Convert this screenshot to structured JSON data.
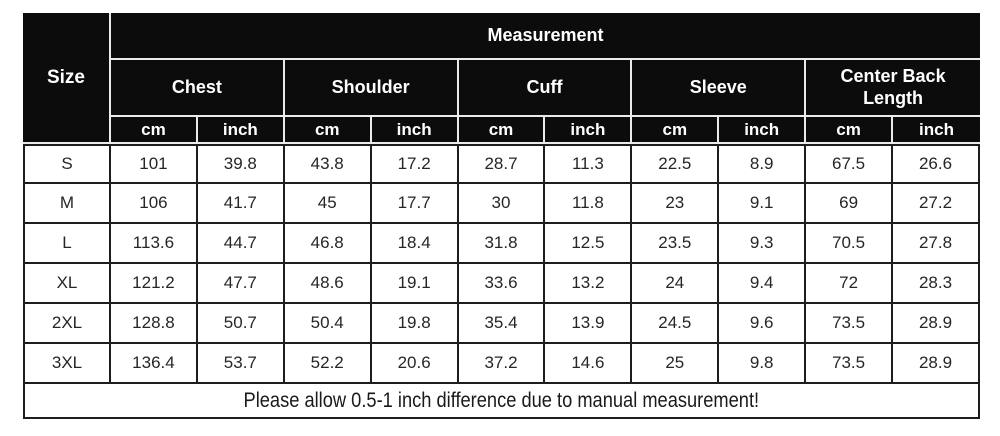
{
  "chart_data": {
    "type": "table",
    "title": "Measurement",
    "corner_label": "Size",
    "column_groups": [
      {
        "label": "Chest"
      },
      {
        "label": "Shoulder"
      },
      {
        "label": "Cuff"
      },
      {
        "label": "Sleeve"
      },
      {
        "label": "Center Back Length"
      }
    ],
    "unit_labels": {
      "cm": "cm",
      "inch": "inch"
    },
    "rows": [
      {
        "size": "S",
        "values": [
          101,
          39.8,
          43.8,
          17.2,
          28.7,
          11.3,
          22.5,
          8.9,
          67.5,
          26.6
        ]
      },
      {
        "size": "M",
        "values": [
          106,
          41.7,
          45,
          17.7,
          30,
          11.8,
          23,
          9.1,
          69,
          27.2
        ]
      },
      {
        "size": "L",
        "values": [
          113.6,
          44.7,
          46.8,
          18.4,
          31.8,
          12.5,
          23.5,
          9.3,
          70.5,
          27.8
        ]
      },
      {
        "size": "XL",
        "values": [
          121.2,
          47.7,
          48.6,
          19.1,
          33.6,
          13.2,
          24,
          9.4,
          72,
          28.3
        ]
      },
      {
        "size": "2XL",
        "values": [
          128.8,
          50.7,
          50.4,
          19.8,
          35.4,
          13.9,
          24.5,
          9.6,
          73.5,
          28.9
        ]
      },
      {
        "size": "3XL",
        "values": [
          136.4,
          53.7,
          52.2,
          20.6,
          37.2,
          14.6,
          25,
          9.8,
          73.5,
          28.9
        ]
      }
    ],
    "note": "Please allow 0.5-1 inch difference due to manual measurement!",
    "layout": {
      "header_bg": "#0c0c0c",
      "header_text_color": "#ffffff",
      "header_divider_color": "#ebebeb",
      "body_border_color": "#1d1d1d",
      "body_text_color": "#262626",
      "page_bg": "#ffffff",
      "grid": true
    }
  }
}
